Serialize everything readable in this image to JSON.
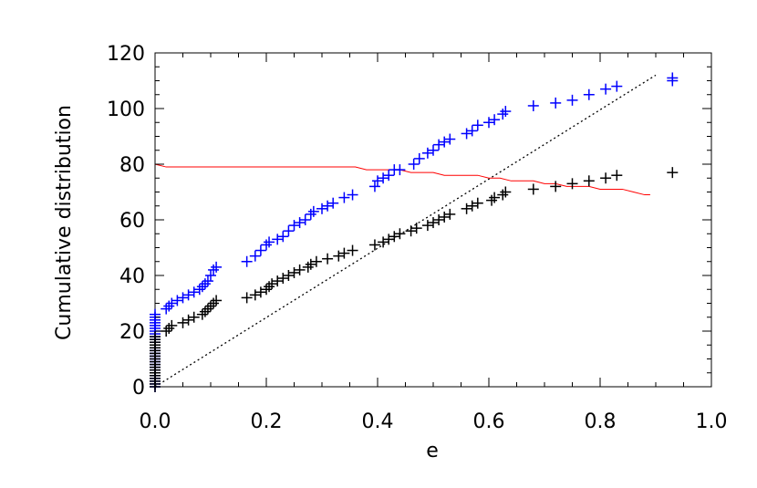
{
  "chart_data": {
    "type": "scatter",
    "title": "",
    "xlabel": "e",
    "ylabel": "Cumulative distribution",
    "xlim": [
      0.0,
      1.0
    ],
    "ylim": [
      0,
      120
    ],
    "x_ticks": [
      "0.0",
      "0.2",
      "0.4",
      "0.6",
      "0.8",
      "1.0"
    ],
    "y_ticks": [
      "0",
      "20",
      "40",
      "60",
      "80",
      "100",
      "120"
    ],
    "grid": false,
    "legend": "none",
    "series": [
      {
        "marker": "plus",
        "color": "#0000ff",
        "points": [
          [
            0.0,
            0
          ],
          [
            0.0,
            1
          ],
          [
            0.0,
            2
          ],
          [
            0.0,
            3
          ],
          [
            0.0,
            4
          ],
          [
            0.0,
            5
          ],
          [
            0.0,
            6
          ],
          [
            0.0,
            7
          ],
          [
            0.0,
            8
          ],
          [
            0.0,
            9
          ],
          [
            0.0,
            10
          ],
          [
            0.0,
            11
          ],
          [
            0.0,
            12
          ],
          [
            0.0,
            13
          ],
          [
            0.0,
            14
          ],
          [
            0.0,
            15
          ],
          [
            0.0,
            16
          ],
          [
            0.0,
            17
          ],
          [
            0.0,
            18
          ],
          [
            0.0,
            19
          ],
          [
            0.0,
            20
          ],
          [
            0.0,
            21
          ],
          [
            0.0,
            22
          ],
          [
            0.0,
            23
          ],
          [
            0.0,
            24
          ],
          [
            0.0,
            25
          ],
          [
            0.0,
            26
          ],
          [
            0.02,
            28
          ],
          [
            0.025,
            29
          ],
          [
            0.03,
            30
          ],
          [
            0.04,
            31
          ],
          [
            0.05,
            32
          ],
          [
            0.06,
            33
          ],
          [
            0.07,
            34
          ],
          [
            0.08,
            35
          ],
          [
            0.085,
            36
          ],
          [
            0.09,
            37
          ],
          [
            0.095,
            38
          ],
          [
            0.1,
            40
          ],
          [
            0.105,
            42
          ],
          [
            0.11,
            43
          ],
          [
            0.165,
            45
          ],
          [
            0.18,
            47
          ],
          [
            0.19,
            49
          ],
          [
            0.2,
            51
          ],
          [
            0.205,
            52
          ],
          [
            0.22,
            53
          ],
          [
            0.23,
            54
          ],
          [
            0.24,
            56
          ],
          [
            0.25,
            58
          ],
          [
            0.26,
            59
          ],
          [
            0.27,
            60
          ],
          [
            0.28,
            62
          ],
          [
            0.285,
            63
          ],
          [
            0.3,
            64
          ],
          [
            0.31,
            65
          ],
          [
            0.32,
            66
          ],
          [
            0.34,
            68
          ],
          [
            0.355,
            69
          ],
          [
            0.395,
            72
          ],
          [
            0.4,
            74
          ],
          [
            0.41,
            75
          ],
          [
            0.42,
            76
          ],
          [
            0.43,
            78
          ],
          [
            0.44,
            78
          ],
          [
            0.465,
            80
          ],
          [
            0.475,
            82
          ],
          [
            0.49,
            84
          ],
          [
            0.5,
            85
          ],
          [
            0.51,
            87
          ],
          [
            0.52,
            88
          ],
          [
            0.53,
            89
          ],
          [
            0.56,
            91
          ],
          [
            0.57,
            92
          ],
          [
            0.58,
            94
          ],
          [
            0.6,
            95
          ],
          [
            0.61,
            96
          ],
          [
            0.625,
            98
          ],
          [
            0.63,
            99
          ],
          [
            0.68,
            101
          ],
          [
            0.72,
            102
          ],
          [
            0.75,
            103
          ],
          [
            0.78,
            105
          ],
          [
            0.81,
            107
          ],
          [
            0.83,
            108
          ],
          [
            0.93,
            110
          ],
          [
            0.93,
            111
          ]
        ]
      },
      {
        "marker": "plus",
        "color": "#000000",
        "points": [
          [
            0.0,
            0
          ],
          [
            0.0,
            1
          ],
          [
            0.0,
            2
          ],
          [
            0.0,
            3
          ],
          [
            0.0,
            4
          ],
          [
            0.0,
            5
          ],
          [
            0.0,
            6
          ],
          [
            0.0,
            7
          ],
          [
            0.0,
            8
          ],
          [
            0.0,
            9
          ],
          [
            0.0,
            10
          ],
          [
            0.0,
            11
          ],
          [
            0.0,
            12
          ],
          [
            0.0,
            13
          ],
          [
            0.0,
            14
          ],
          [
            0.0,
            15
          ],
          [
            0.0,
            16
          ],
          [
            0.0,
            17
          ],
          [
            0.0,
            18
          ],
          [
            0.02,
            20
          ],
          [
            0.025,
            21
          ],
          [
            0.03,
            22
          ],
          [
            0.05,
            23
          ],
          [
            0.06,
            24
          ],
          [
            0.07,
            25
          ],
          [
            0.085,
            26
          ],
          [
            0.09,
            27
          ],
          [
            0.095,
            28
          ],
          [
            0.1,
            29
          ],
          [
            0.105,
            30
          ],
          [
            0.11,
            31
          ],
          [
            0.165,
            32
          ],
          [
            0.18,
            33
          ],
          [
            0.19,
            34
          ],
          [
            0.2,
            35
          ],
          [
            0.205,
            36
          ],
          [
            0.21,
            37
          ],
          [
            0.22,
            38
          ],
          [
            0.23,
            39
          ],
          [
            0.24,
            40
          ],
          [
            0.25,
            41
          ],
          [
            0.26,
            42
          ],
          [
            0.275,
            43
          ],
          [
            0.28,
            44
          ],
          [
            0.29,
            45
          ],
          [
            0.31,
            46
          ],
          [
            0.33,
            47
          ],
          [
            0.34,
            48
          ],
          [
            0.355,
            49
          ],
          [
            0.395,
            51
          ],
          [
            0.41,
            52
          ],
          [
            0.42,
            53
          ],
          [
            0.43,
            54
          ],
          [
            0.44,
            55
          ],
          [
            0.46,
            56
          ],
          [
            0.47,
            57
          ],
          [
            0.49,
            58
          ],
          [
            0.5,
            59
          ],
          [
            0.51,
            60
          ],
          [
            0.52,
            61
          ],
          [
            0.53,
            62
          ],
          [
            0.56,
            64
          ],
          [
            0.57,
            65
          ],
          [
            0.58,
            66
          ],
          [
            0.605,
            67
          ],
          [
            0.61,
            68
          ],
          [
            0.625,
            69
          ],
          [
            0.63,
            70
          ],
          [
            0.68,
            71
          ],
          [
            0.72,
            72
          ],
          [
            0.75,
            73
          ],
          [
            0.78,
            74
          ],
          [
            0.81,
            75
          ],
          [
            0.83,
            76
          ],
          [
            0.93,
            77
          ]
        ]
      }
    ],
    "lines": [
      {
        "style": "dotted",
        "color": "#000000",
        "points": [
          [
            0.0,
            0
          ],
          [
            0.9,
            112
          ]
        ]
      },
      {
        "style": "solid",
        "color": "#ff0000",
        "points": [
          [
            0.0,
            80
          ],
          [
            0.02,
            79
          ],
          [
            0.04,
            79
          ],
          [
            0.06,
            79
          ],
          [
            0.08,
            79
          ],
          [
            0.1,
            79
          ],
          [
            0.12,
            79
          ],
          [
            0.14,
            79
          ],
          [
            0.16,
            79
          ],
          [
            0.18,
            79
          ],
          [
            0.2,
            79
          ],
          [
            0.22,
            79
          ],
          [
            0.24,
            79
          ],
          [
            0.26,
            79
          ],
          [
            0.28,
            79
          ],
          [
            0.3,
            79
          ],
          [
            0.32,
            79
          ],
          [
            0.34,
            79
          ],
          [
            0.36,
            79
          ],
          [
            0.38,
            78
          ],
          [
            0.4,
            78
          ],
          [
            0.42,
            78
          ],
          [
            0.44,
            78
          ],
          [
            0.46,
            77
          ],
          [
            0.48,
            77
          ],
          [
            0.5,
            77
          ],
          [
            0.52,
            76
          ],
          [
            0.54,
            76
          ],
          [
            0.56,
            76
          ],
          [
            0.58,
            76
          ],
          [
            0.6,
            75
          ],
          [
            0.62,
            75
          ],
          [
            0.64,
            74
          ],
          [
            0.66,
            74
          ],
          [
            0.68,
            74
          ],
          [
            0.7,
            73
          ],
          [
            0.72,
            73
          ],
          [
            0.74,
            72
          ],
          [
            0.76,
            72
          ],
          [
            0.78,
            72
          ],
          [
            0.8,
            71
          ],
          [
            0.82,
            71
          ],
          [
            0.84,
            71
          ],
          [
            0.86,
            70
          ],
          [
            0.88,
            69
          ],
          [
            0.89,
            69
          ]
        ]
      }
    ]
  }
}
